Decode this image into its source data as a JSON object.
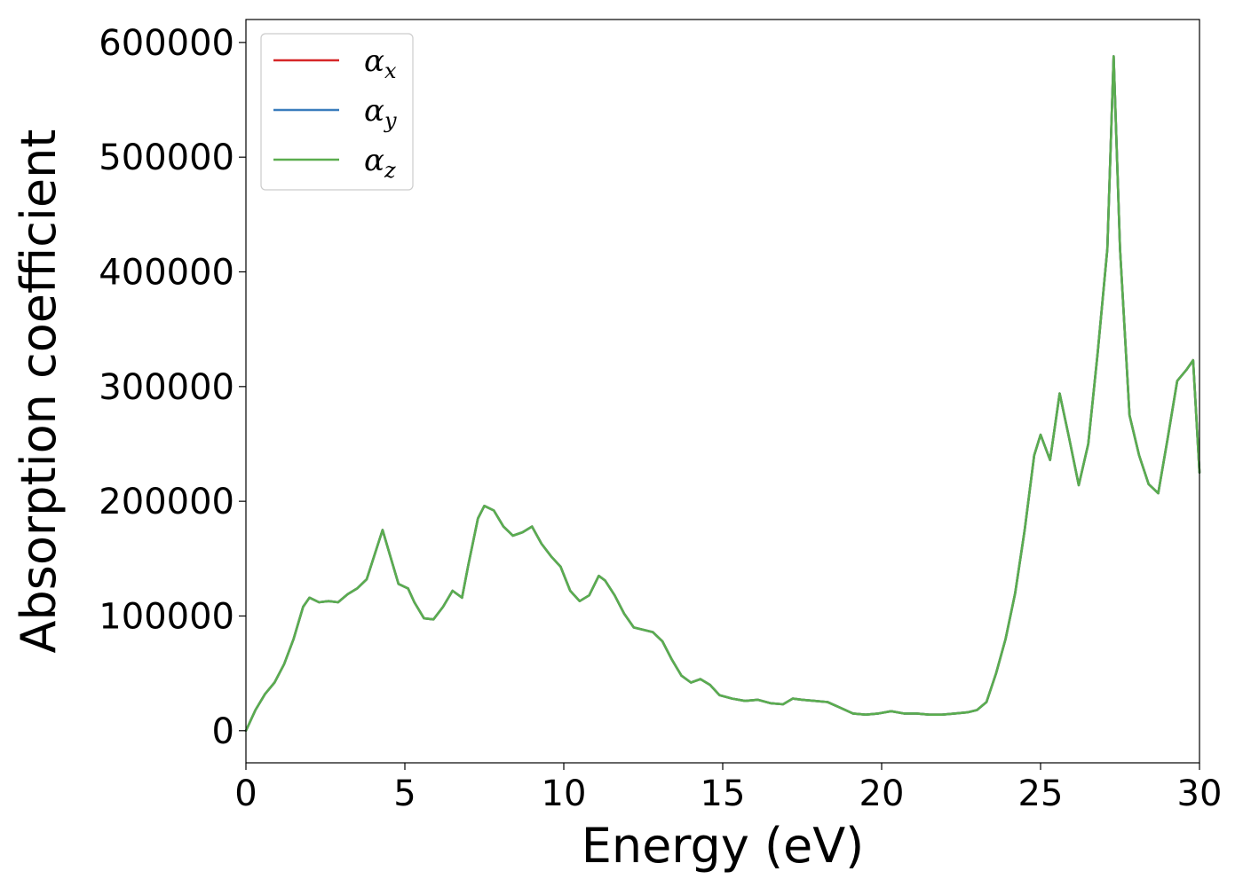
{
  "chart_data": {
    "type": "line",
    "title": "",
    "xlabel": "Energy (eV)",
    "ylabel": "Absorption coefficient",
    "xlim": [
      0,
      30
    ],
    "ylim": [
      -28000,
      620000
    ],
    "xticks": [
      0,
      5,
      10,
      15,
      20,
      25,
      30
    ],
    "yticks": [
      0,
      100000,
      200000,
      300000,
      400000,
      500000,
      600000
    ],
    "grid": false,
    "legend_position": "top-left",
    "x": [
      0,
      0.3,
      0.6,
      0.9,
      1.2,
      1.5,
      1.8,
      2.0,
      2.3,
      2.6,
      2.9,
      3.2,
      3.5,
      3.8,
      4.1,
      4.3,
      4.5,
      4.8,
      5.1,
      5.3,
      5.6,
      5.9,
      6.2,
      6.5,
      6.8,
      7.0,
      7.3,
      7.5,
      7.8,
      8.1,
      8.4,
      8.7,
      9.0,
      9.3,
      9.6,
      9.9,
      10.2,
      10.5,
      10.8,
      11.1,
      11.3,
      11.6,
      11.9,
      12.2,
      12.5,
      12.8,
      13.1,
      13.4,
      13.7,
      14.0,
      14.3,
      14.6,
      14.9,
      15.3,
      15.7,
      16.1,
      16.5,
      16.9,
      17.2,
      17.5,
      17.9,
      18.3,
      18.7,
      19.1,
      19.5,
      19.9,
      20.3,
      20.7,
      21.1,
      21.5,
      21.9,
      22.3,
      22.7,
      23.0,
      23.3,
      23.6,
      23.9,
      24.2,
      24.5,
      24.8,
      25.0,
      25.3,
      25.6,
      25.9,
      26.2,
      26.5,
      26.8,
      27.1,
      27.3,
      27.5,
      27.8,
      28.1,
      28.4,
      28.7,
      29.0,
      29.3,
      29.6,
      29.8,
      30.0
    ],
    "series": [
      {
        "name": "α_x",
        "color": "#d62728",
        "values": [
          0,
          18000,
          32000,
          42000,
          58000,
          80000,
          108000,
          116000,
          112000,
          113000,
          112000,
          119000,
          124000,
          132000,
          158000,
          175000,
          156000,
          128000,
          124000,
          112000,
          98000,
          97000,
          108000,
          122000,
          116000,
          145000,
          185000,
          196000,
          192000,
          178000,
          170000,
          173000,
          178000,
          163000,
          152000,
          143000,
          122000,
          113000,
          118000,
          135000,
          131000,
          118000,
          102000,
          90000,
          88000,
          86000,
          78000,
          62000,
          48000,
          42000,
          45000,
          40000,
          31000,
          28000,
          26000,
          27000,
          24000,
          23000,
          28000,
          27000,
          26000,
          25000,
          20000,
          15000,
          14000,
          15000,
          17000,
          15000,
          15000,
          14000,
          14000,
          15000,
          16000,
          18000,
          25000,
          50000,
          80000,
          120000,
          175000,
          240000,
          258000,
          236000,
          294000,
          255000,
          214000,
          250000,
          330000,
          420000,
          588000,
          420000,
          275000,
          240000,
          215000,
          207000,
          255000,
          305000,
          315000,
          323000,
          225000
        ]
      },
      {
        "name": "α_y",
        "color": "#3a7dbd",
        "values": [
          0,
          18000,
          32000,
          42000,
          58000,
          80000,
          108000,
          116000,
          112000,
          113000,
          112000,
          119000,
          124000,
          132000,
          158000,
          175000,
          156000,
          128000,
          124000,
          112000,
          98000,
          97000,
          108000,
          122000,
          116000,
          145000,
          185000,
          196000,
          192000,
          178000,
          170000,
          173000,
          178000,
          163000,
          152000,
          143000,
          122000,
          113000,
          118000,
          135000,
          131000,
          118000,
          102000,
          90000,
          88000,
          86000,
          78000,
          62000,
          48000,
          42000,
          45000,
          40000,
          31000,
          28000,
          26000,
          27000,
          24000,
          23000,
          28000,
          27000,
          26000,
          25000,
          20000,
          15000,
          14000,
          15000,
          17000,
          15000,
          15000,
          14000,
          14000,
          15000,
          16000,
          18000,
          25000,
          50000,
          80000,
          120000,
          175000,
          240000,
          258000,
          236000,
          294000,
          255000,
          214000,
          250000,
          330000,
          420000,
          588000,
          420000,
          275000,
          240000,
          215000,
          207000,
          255000,
          305000,
          315000,
          323000,
          225000
        ]
      },
      {
        "name": "α_z",
        "color": "#5aad4f",
        "values": [
          0,
          18000,
          32000,
          42000,
          58000,
          80000,
          108000,
          116000,
          112000,
          113000,
          112000,
          119000,
          124000,
          132000,
          158000,
          175000,
          156000,
          128000,
          124000,
          112000,
          98000,
          97000,
          108000,
          122000,
          116000,
          145000,
          185000,
          196000,
          192000,
          178000,
          170000,
          173000,
          178000,
          163000,
          152000,
          143000,
          122000,
          113000,
          118000,
          135000,
          131000,
          118000,
          102000,
          90000,
          88000,
          86000,
          78000,
          62000,
          48000,
          42000,
          45000,
          40000,
          31000,
          28000,
          26000,
          27000,
          24000,
          23000,
          28000,
          27000,
          26000,
          25000,
          20000,
          15000,
          14000,
          15000,
          17000,
          15000,
          15000,
          14000,
          14000,
          15000,
          16000,
          18000,
          25000,
          50000,
          80000,
          120000,
          175000,
          240000,
          258000,
          236000,
          294000,
          255000,
          214000,
          250000,
          330000,
          420000,
          588000,
          420000,
          275000,
          240000,
          215000,
          207000,
          255000,
          305000,
          315000,
          323000,
          225000
        ]
      }
    ]
  }
}
